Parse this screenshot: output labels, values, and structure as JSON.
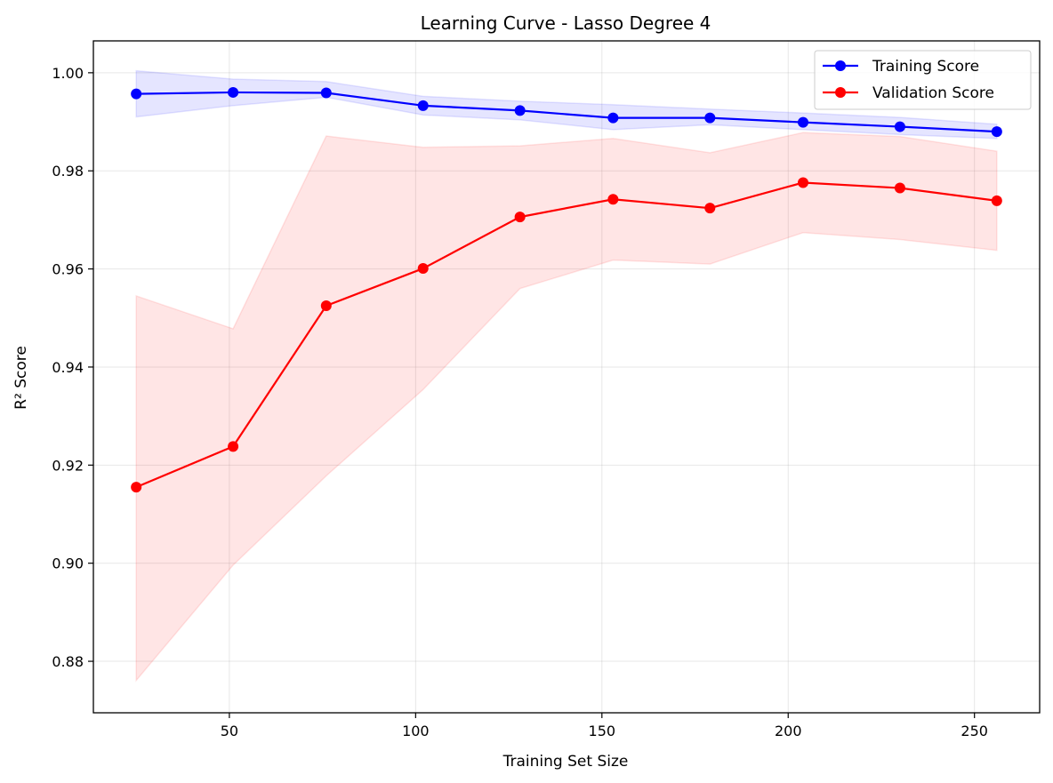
{
  "chart_data": {
    "type": "line",
    "title": "Learning Curve - Lasso Degree 4",
    "xlabel": "Training Set Size",
    "ylabel": "R² Score",
    "xlim": [
      13.5,
      267.5
    ],
    "ylim": [
      0.8695,
      1.0065
    ],
    "xticks": [
      50,
      100,
      150,
      200,
      250
    ],
    "yticks": [
      0.88,
      0.9,
      0.92,
      0.94,
      0.96,
      0.98,
      1.0
    ],
    "xtick_labels": [
      "50",
      "100",
      "150",
      "200",
      "250"
    ],
    "ytick_labels": [
      "0.88",
      "0.90",
      "0.92",
      "0.94",
      "0.96",
      "0.98",
      "1.00"
    ],
    "grid": true,
    "legend_position": "top-right",
    "x": [
      25,
      51,
      76,
      102,
      128,
      153,
      179,
      204,
      230,
      256
    ],
    "series": [
      {
        "name": "Training Score",
        "color": "#0000ff",
        "band_color": "#0000ff",
        "values": [
          0.9957,
          0.996,
          0.9959,
          0.9933,
          0.9923,
          0.9908,
          0.9908,
          0.9899,
          0.989,
          0.988
        ],
        "upper": [
          1.0004,
          0.9987,
          0.9982,
          0.9952,
          0.9942,
          0.9935,
          0.9926,
          0.9918,
          0.9909,
          0.9895
        ],
        "lower": [
          0.991,
          0.9933,
          0.995,
          0.9914,
          0.9904,
          0.9884,
          0.9894,
          0.9884,
          0.9874,
          0.9866
        ]
      },
      {
        "name": "Validation Score",
        "color": "#ff0000",
        "band_color": "#ff0000",
        "values": [
          0.9155,
          0.9238,
          0.9525,
          0.9601,
          0.9706,
          0.9742,
          0.9724,
          0.9776,
          0.9765,
          0.9739
        ],
        "upper": [
          0.9545,
          0.9478,
          0.9871,
          0.9848,
          0.9851,
          0.9866,
          0.9837,
          0.9878,
          0.987,
          0.984
        ],
        "lower": [
          0.8761,
          0.8996,
          0.9178,
          0.9354,
          0.956,
          0.9618,
          0.961,
          0.9674,
          0.966,
          0.9638
        ]
      }
    ]
  }
}
